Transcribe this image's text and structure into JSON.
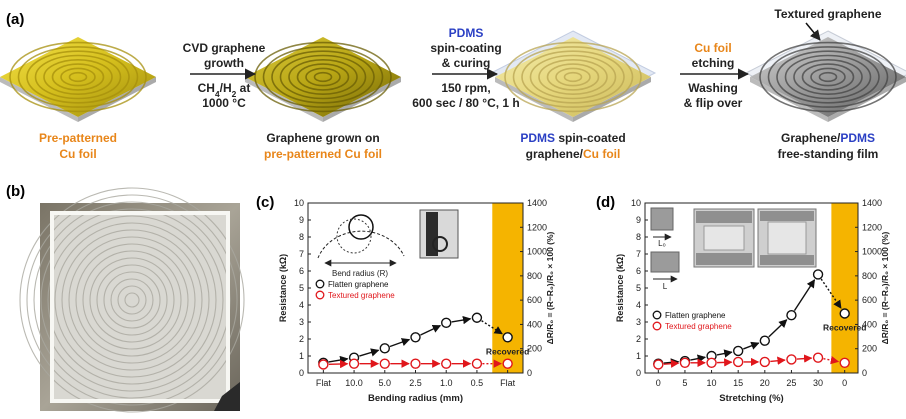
{
  "panel_a": {
    "label": "(a)",
    "stage_labels": [
      {
        "lines": [
          {
            "spans": [
              {
                "text": "Pre-patterned",
                "color": "#e8861a"
              }
            ]
          },
          {
            "spans": [
              {
                "text": "Cu foil",
                "color": "#e8861a"
              }
            ]
          }
        ]
      },
      {
        "lines": [
          {
            "spans": [
              {
                "text": "Graphene grown on",
                "color": "#222222"
              }
            ]
          },
          {
            "spans": [
              {
                "text": "pre-patterned ",
                "color": "#e8861a"
              },
              {
                "text": "Cu foil",
                "color": "#e8861a"
              }
            ]
          }
        ]
      },
      {
        "lines": [
          {
            "spans": [
              {
                "text": "PDMS",
                "color": "#2a3fc4"
              },
              {
                "text": " spin-coated",
                "color": "#222222"
              }
            ]
          },
          {
            "spans": [
              {
                "text": "graphene/",
                "color": "#222222"
              },
              {
                "text": "Cu  foil",
                "color": "#e8861a"
              }
            ]
          }
        ]
      },
      {
        "lines": [
          {
            "spans": [
              {
                "text": "Graphene/",
                "color": "#222222"
              },
              {
                "text": "PDMS",
                "color": "#2a3fc4"
              }
            ]
          },
          {
            "spans": [
              {
                "text": "free-standing film",
                "color": "#222222"
              }
            ]
          }
        ]
      }
    ],
    "steps": [
      {
        "above": [
          {
            "spans": [
              {
                "text": "CVD graphene",
                "color": "#222222"
              }
            ]
          },
          {
            "spans": [
              {
                "text": "growth",
                "color": "#222222"
              }
            ]
          }
        ],
        "below": [
          {
            "spans": [
              {
                "text": "CH",
                "color": "#222222"
              },
              {
                "text": "4",
                "color": "#222222",
                "sub": true
              },
              {
                "text": "/H",
                "color": "#222222"
              },
              {
                "text": "2",
                "color": "#222222",
                "sub": true
              },
              {
                "text": " at",
                "color": "#222222"
              }
            ]
          },
          {
            "spans": [
              {
                "text": "1000 °C",
                "color": "#222222"
              }
            ]
          }
        ]
      },
      {
        "above": [
          {
            "spans": [
              {
                "text": "PDMS",
                "color": "#2a3fc4"
              }
            ]
          },
          {
            "spans": [
              {
                "text": "spin-coating",
                "color": "#222222"
              }
            ]
          },
          {
            "spans": [
              {
                "text": "& curing",
                "color": "#222222"
              }
            ]
          }
        ],
        "below": [
          {
            "spans": [
              {
                "text": "150 rpm,",
                "color": "#222222"
              }
            ]
          },
          {
            "spans": [
              {
                "text": "600 sec / 80 °C, 1 h",
                "color": "#222222"
              }
            ]
          }
        ]
      },
      {
        "above": [
          {
            "spans": [
              {
                "text": "Cu foil",
                "color": "#e8861a"
              }
            ]
          },
          {
            "spans": [
              {
                "text": "etching",
                "color": "#222222"
              }
            ]
          }
        ],
        "below": [
          {
            "spans": [
              {
                "text": "Washing",
                "color": "#222222"
              }
            ]
          },
          {
            "spans": [
              {
                "text": "& flip over",
                "color": "#222222"
              }
            ]
          }
        ]
      }
    ],
    "textured_label": "Textured graphene"
  },
  "panel_b": {
    "label": "(b)"
  },
  "panel_c": {
    "label": "(c)",
    "inset_text": "Bend radius (R)"
  },
  "panel_d": {
    "label": "(d)",
    "inset_l0": "L₀",
    "inset_l": "L"
  },
  "colors": {
    "cu": "#d9c21e",
    "cu_dark": "#8a7a08",
    "graphene_gray": "#8c8c8c",
    "pdms": "#c8d2e6",
    "bar": "#f5b400",
    "series_black": "#111111",
    "series_red": "#e0161b"
  },
  "chart_data": [
    {
      "type": "line",
      "panel": "c",
      "categories": [
        "Flat",
        "10.0",
        "5.0",
        "2.5",
        "1.0",
        "0.5",
        "Flat"
      ],
      "xlabel": "Bending radius (mm)",
      "ylabel": "Resistance (kΩ)",
      "ylabel_right": "ΔR/R₀ = (R−R₀)/R₀ × 100 (%)",
      "ylim": [
        0,
        10
      ],
      "ylim_right": [
        0,
        1400
      ],
      "yticks": [
        0,
        1,
        2,
        3,
        4,
        5,
        6,
        7,
        8,
        9,
        10
      ],
      "yticks_right": [
        0,
        200,
        400,
        600,
        800,
        1000,
        1200,
        1400
      ],
      "series": [
        {
          "name": "Flatten graphene",
          "color": "#111111",
          "values": [
            0.6,
            0.9,
            1.45,
            2.1,
            2.95,
            3.25,
            2.1
          ]
        },
        {
          "name": "Textured graphene",
          "color": "#e0161b",
          "values": [
            0.5,
            0.55,
            0.55,
            0.55,
            0.55,
            0.55,
            0.55
          ]
        }
      ],
      "highlight_category_index": 6,
      "annotation": "Recovered",
      "legend_position": "center-left"
    },
    {
      "type": "line",
      "panel": "d",
      "categories": [
        "0",
        "5",
        "10",
        "15",
        "20",
        "25",
        "30",
        "0"
      ],
      "xlabel": "Stretching (%)",
      "ylabel": "Resistance (kΩ)",
      "ylabel_right": "ΔR/R₀ = (R−R₀)/R₀ × 100 (%)",
      "ylim": [
        0,
        10
      ],
      "ylim_right": [
        0,
        1400
      ],
      "yticks": [
        0,
        1,
        2,
        3,
        4,
        5,
        6,
        7,
        8,
        9,
        10
      ],
      "yticks_right": [
        0,
        200,
        400,
        600,
        800,
        1000,
        1200,
        1400
      ],
      "series": [
        {
          "name": "Flatten graphene",
          "color": "#111111",
          "values": [
            0.55,
            0.7,
            1.0,
            1.3,
            1.9,
            3.4,
            5.8,
            3.5
          ]
        },
        {
          "name": "Textured graphene",
          "color": "#e0161b",
          "values": [
            0.5,
            0.6,
            0.6,
            0.65,
            0.65,
            0.8,
            0.9,
            0.6
          ]
        }
      ],
      "highlight_category_index": 7,
      "annotation": "Recovered",
      "legend_position": "center-left"
    }
  ]
}
